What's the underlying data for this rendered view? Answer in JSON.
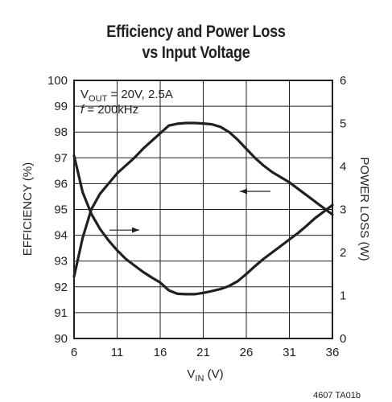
{
  "title_line1": "Efficiency and Power Loss",
  "title_line2": "vs Input Voltage",
  "annotation_line1": "V",
  "annotation_line1_sub": "OUT",
  "annotation_line1_rest": " = 20V, 2.5A",
  "annotation_line2_italic": "f",
  "annotation_line2_rest": " =  200kHz",
  "xlabel_main": "V",
  "xlabel_sub": "IN",
  "xlabel_rest": " (V)",
  "ylabel_left": "EFFICIENCY (%)",
  "ylabel_right": "POWER LOSS (W)",
  "figure_code": "4607 TA01b",
  "colors": {
    "ink": "#231f20"
  },
  "chart_data": {
    "type": "line",
    "x_ticks": [
      6,
      11,
      16,
      21,
      26,
      31,
      36
    ],
    "y_left_ticks": [
      90,
      91,
      92,
      93,
      94,
      95,
      96,
      97,
      98,
      99,
      100
    ],
    "y_right_ticks": [
      0,
      1,
      2,
      3,
      4,
      5,
      6
    ],
    "xlim": [
      6,
      36
    ],
    "ylim_left": [
      90,
      100
    ],
    "ylim_right": [
      0,
      6
    ],
    "grid": true,
    "series": [
      {
        "axis": "left",
        "x": [
          6,
          7,
          8,
          9,
          10,
          11,
          12,
          13,
          14,
          15,
          16,
          17,
          18,
          19,
          20,
          21,
          22,
          23,
          24,
          25,
          26,
          27,
          28,
          29,
          30,
          31,
          32,
          33,
          34,
          35,
          36
        ],
        "values": [
          92.4,
          93.9,
          95.0,
          95.6,
          96.0,
          96.4,
          96.7,
          97.0,
          97.35,
          97.65,
          97.95,
          98.25,
          98.32,
          98.35,
          98.35,
          98.33,
          98.3,
          98.2,
          98.0,
          97.7,
          97.35,
          97.0,
          96.7,
          96.45,
          96.25,
          96.05,
          95.8,
          95.55,
          95.3,
          95.05,
          94.8
        ]
      },
      {
        "axis": "right",
        "x": [
          6,
          7,
          8,
          9,
          10,
          11,
          12,
          13,
          14,
          15,
          16,
          17,
          18,
          19,
          20,
          21,
          22,
          23,
          24,
          25,
          26,
          27,
          28,
          29,
          30,
          31,
          32,
          33,
          34,
          35,
          36
        ],
        "values": [
          4.25,
          3.4,
          2.9,
          2.55,
          2.28,
          2.05,
          1.85,
          1.7,
          1.55,
          1.42,
          1.3,
          1.12,
          1.04,
          1.03,
          1.03,
          1.06,
          1.1,
          1.15,
          1.22,
          1.33,
          1.5,
          1.68,
          1.85,
          2.0,
          2.15,
          2.3,
          2.45,
          2.62,
          2.8,
          2.95,
          3.1
        ]
      }
    ]
  }
}
